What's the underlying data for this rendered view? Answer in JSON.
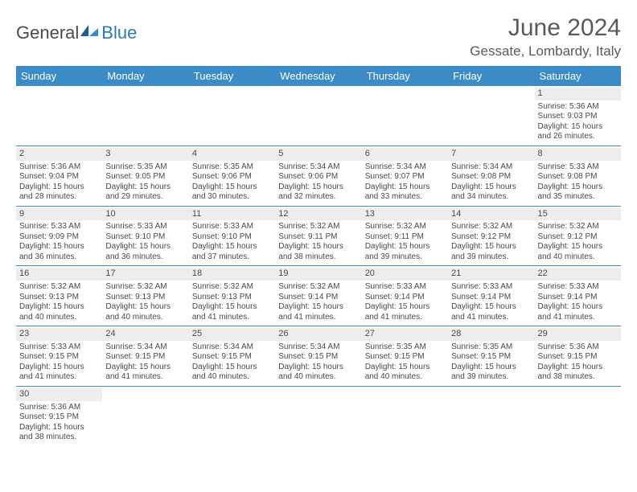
{
  "brand": {
    "general": "General",
    "blue": "Blue"
  },
  "title": "June 2024",
  "location": "Gessate, Lombardy, Italy",
  "calendar": {
    "day_header_bg": "#3b8bc8",
    "day_header_fg": "#ffffff",
    "daynum_bg": "#ededed",
    "grid_line": "#3b8bc8",
    "days": [
      "Sunday",
      "Monday",
      "Tuesday",
      "Wednesday",
      "Thursday",
      "Friday",
      "Saturday"
    ],
    "cells": [
      {
        "day": "",
        "sunrise": "",
        "sunset": "",
        "daylight": ""
      },
      {
        "day": "",
        "sunrise": "",
        "sunset": "",
        "daylight": ""
      },
      {
        "day": "",
        "sunrise": "",
        "sunset": "",
        "daylight": ""
      },
      {
        "day": "",
        "sunrise": "",
        "sunset": "",
        "daylight": ""
      },
      {
        "day": "",
        "sunrise": "",
        "sunset": "",
        "daylight": ""
      },
      {
        "day": "",
        "sunrise": "",
        "sunset": "",
        "daylight": ""
      },
      {
        "day": "1",
        "sunrise": "Sunrise: 5:36 AM",
        "sunset": "Sunset: 9:03 PM",
        "daylight": "Daylight: 15 hours and 26 minutes."
      },
      {
        "day": "2",
        "sunrise": "Sunrise: 5:36 AM",
        "sunset": "Sunset: 9:04 PM",
        "daylight": "Daylight: 15 hours and 28 minutes."
      },
      {
        "day": "3",
        "sunrise": "Sunrise: 5:35 AM",
        "sunset": "Sunset: 9:05 PM",
        "daylight": "Daylight: 15 hours and 29 minutes."
      },
      {
        "day": "4",
        "sunrise": "Sunrise: 5:35 AM",
        "sunset": "Sunset: 9:06 PM",
        "daylight": "Daylight: 15 hours and 30 minutes."
      },
      {
        "day": "5",
        "sunrise": "Sunrise: 5:34 AM",
        "sunset": "Sunset: 9:06 PM",
        "daylight": "Daylight: 15 hours and 32 minutes."
      },
      {
        "day": "6",
        "sunrise": "Sunrise: 5:34 AM",
        "sunset": "Sunset: 9:07 PM",
        "daylight": "Daylight: 15 hours and 33 minutes."
      },
      {
        "day": "7",
        "sunrise": "Sunrise: 5:34 AM",
        "sunset": "Sunset: 9:08 PM",
        "daylight": "Daylight: 15 hours and 34 minutes."
      },
      {
        "day": "8",
        "sunrise": "Sunrise: 5:33 AM",
        "sunset": "Sunset: 9:08 PM",
        "daylight": "Daylight: 15 hours and 35 minutes."
      },
      {
        "day": "9",
        "sunrise": "Sunrise: 5:33 AM",
        "sunset": "Sunset: 9:09 PM",
        "daylight": "Daylight: 15 hours and 36 minutes."
      },
      {
        "day": "10",
        "sunrise": "Sunrise: 5:33 AM",
        "sunset": "Sunset: 9:10 PM",
        "daylight": "Daylight: 15 hours and 36 minutes."
      },
      {
        "day": "11",
        "sunrise": "Sunrise: 5:33 AM",
        "sunset": "Sunset: 9:10 PM",
        "daylight": "Daylight: 15 hours and 37 minutes."
      },
      {
        "day": "12",
        "sunrise": "Sunrise: 5:32 AM",
        "sunset": "Sunset: 9:11 PM",
        "daylight": "Daylight: 15 hours and 38 minutes."
      },
      {
        "day": "13",
        "sunrise": "Sunrise: 5:32 AM",
        "sunset": "Sunset: 9:11 PM",
        "daylight": "Daylight: 15 hours and 39 minutes."
      },
      {
        "day": "14",
        "sunrise": "Sunrise: 5:32 AM",
        "sunset": "Sunset: 9:12 PM",
        "daylight": "Daylight: 15 hours and 39 minutes."
      },
      {
        "day": "15",
        "sunrise": "Sunrise: 5:32 AM",
        "sunset": "Sunset: 9:12 PM",
        "daylight": "Daylight: 15 hours and 40 minutes."
      },
      {
        "day": "16",
        "sunrise": "Sunrise: 5:32 AM",
        "sunset": "Sunset: 9:13 PM",
        "daylight": "Daylight: 15 hours and 40 minutes."
      },
      {
        "day": "17",
        "sunrise": "Sunrise: 5:32 AM",
        "sunset": "Sunset: 9:13 PM",
        "daylight": "Daylight: 15 hours and 40 minutes."
      },
      {
        "day": "18",
        "sunrise": "Sunrise: 5:32 AM",
        "sunset": "Sunset: 9:13 PM",
        "daylight": "Daylight: 15 hours and 41 minutes."
      },
      {
        "day": "19",
        "sunrise": "Sunrise: 5:32 AM",
        "sunset": "Sunset: 9:14 PM",
        "daylight": "Daylight: 15 hours and 41 minutes."
      },
      {
        "day": "20",
        "sunrise": "Sunrise: 5:33 AM",
        "sunset": "Sunset: 9:14 PM",
        "daylight": "Daylight: 15 hours and 41 minutes."
      },
      {
        "day": "21",
        "sunrise": "Sunrise: 5:33 AM",
        "sunset": "Sunset: 9:14 PM",
        "daylight": "Daylight: 15 hours and 41 minutes."
      },
      {
        "day": "22",
        "sunrise": "Sunrise: 5:33 AM",
        "sunset": "Sunset: 9:14 PM",
        "daylight": "Daylight: 15 hours and 41 minutes."
      },
      {
        "day": "23",
        "sunrise": "Sunrise: 5:33 AM",
        "sunset": "Sunset: 9:15 PM",
        "daylight": "Daylight: 15 hours and 41 minutes."
      },
      {
        "day": "24",
        "sunrise": "Sunrise: 5:34 AM",
        "sunset": "Sunset: 9:15 PM",
        "daylight": "Daylight: 15 hours and 41 minutes."
      },
      {
        "day": "25",
        "sunrise": "Sunrise: 5:34 AM",
        "sunset": "Sunset: 9:15 PM",
        "daylight": "Daylight: 15 hours and 40 minutes."
      },
      {
        "day": "26",
        "sunrise": "Sunrise: 5:34 AM",
        "sunset": "Sunset: 9:15 PM",
        "daylight": "Daylight: 15 hours and 40 minutes."
      },
      {
        "day": "27",
        "sunrise": "Sunrise: 5:35 AM",
        "sunset": "Sunset: 9:15 PM",
        "daylight": "Daylight: 15 hours and 40 minutes."
      },
      {
        "day": "28",
        "sunrise": "Sunrise: 5:35 AM",
        "sunset": "Sunset: 9:15 PM",
        "daylight": "Daylight: 15 hours and 39 minutes."
      },
      {
        "day": "29",
        "sunrise": "Sunrise: 5:36 AM",
        "sunset": "Sunset: 9:15 PM",
        "daylight": "Daylight: 15 hours and 38 minutes."
      },
      {
        "day": "30",
        "sunrise": "Sunrise: 5:36 AM",
        "sunset": "Sunset: 9:15 PM",
        "daylight": "Daylight: 15 hours and 38 minutes."
      },
      {
        "day": "",
        "sunrise": "",
        "sunset": "",
        "daylight": ""
      },
      {
        "day": "",
        "sunrise": "",
        "sunset": "",
        "daylight": ""
      },
      {
        "day": "",
        "sunrise": "",
        "sunset": "",
        "daylight": ""
      },
      {
        "day": "",
        "sunrise": "",
        "sunset": "",
        "daylight": ""
      },
      {
        "day": "",
        "sunrise": "",
        "sunset": "",
        "daylight": ""
      },
      {
        "day": "",
        "sunrise": "",
        "sunset": "",
        "daylight": ""
      }
    ]
  }
}
